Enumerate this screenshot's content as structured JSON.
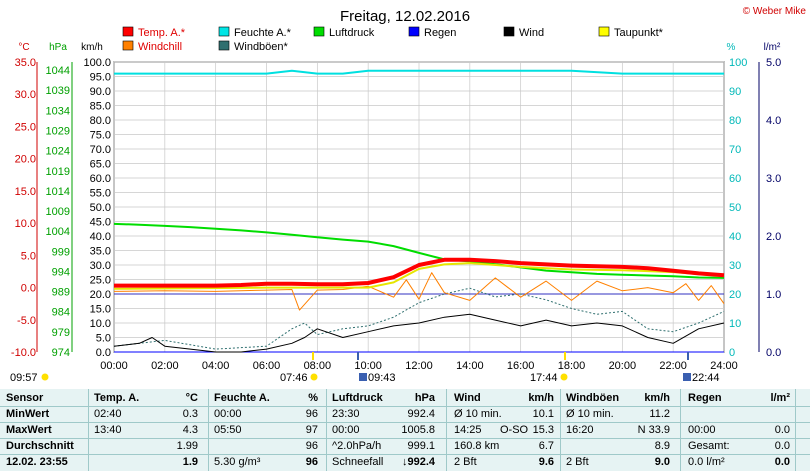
{
  "chart_data": {
    "type": "line",
    "title": "Freitag, 12.02.2016",
    "credit": "© Weber Mike",
    "legend": [
      {
        "name": "Temp. A.*",
        "color": "#ff0000"
      },
      {
        "name": "Feuchte A.*",
        "color": "#00e5e5"
      },
      {
        "name": "Luftdruck",
        "color": "#00dd00"
      },
      {
        "name": "Regen",
        "color": "#0000ff"
      },
      {
        "name": "Wind",
        "color": "#000000"
      },
      {
        "name": "Taupunkt*",
        "color": "#ffff00"
      },
      {
        "name": "Windchill",
        "color": "#ff8000"
      },
      {
        "name": "Windböen*",
        "color": "#2f6f6f"
      }
    ],
    "axes": {
      "temp": {
        "unit": "°C",
        "range": [
          -10,
          35
        ],
        "ticks": [
          "35.0",
          "30.0",
          "25.0",
          "20.0",
          "15.0",
          "10.0",
          "5.0",
          "0.0",
          "-5.0",
          "-10.0"
        ]
      },
      "pressure": {
        "unit": "hPa",
        "range": [
          974,
          1046
        ],
        "ticks": [
          "1044",
          "1039",
          "1034",
          "1029",
          "1024",
          "1019",
          "1014",
          "1009",
          "1004",
          "999",
          "994",
          "989",
          "984",
          "979",
          "974"
        ]
      },
      "wind": {
        "unit": "km/h",
        "range": [
          0,
          100
        ],
        "ticks": [
          "100.0",
          "95.0",
          "90.0",
          "85.0",
          "80.0",
          "75.0",
          "70.0",
          "65.0",
          "60.0",
          "55.0",
          "50.0",
          "45.0",
          "40.0",
          "35.0",
          "30.0",
          "25.0",
          "20.0",
          "15.0",
          "10.0",
          "5.0",
          "0.0"
        ]
      },
      "humidity": {
        "unit": "%",
        "range": [
          0,
          100
        ],
        "ticks": [
          "100",
          "90",
          "80",
          "70",
          "60",
          "50",
          "40",
          "30",
          "20",
          "10",
          "0"
        ]
      },
      "rain": {
        "unit": "l/m²",
        "range": [
          0,
          5
        ],
        "ticks": [
          "5.0",
          "4.0",
          "3.0",
          "2.0",
          "1.0",
          "0.0"
        ]
      },
      "time": {
        "ticks": [
          "00:00",
          "02:00",
          "04:00",
          "06:00",
          "08:00",
          "10:00",
          "12:00",
          "14:00",
          "16:00",
          "18:00",
          "20:00",
          "22:00",
          "24:00"
        ]
      }
    },
    "sun_moon_events": [
      "09:57",
      "07:46",
      "09:43",
      "17:44",
      "22:44"
    ],
    "series": [
      {
        "name": "Temp. A.*",
        "axis": "temp",
        "x": [
          0,
          1,
          2,
          3,
          4,
          5,
          6,
          7,
          8,
          9,
          10,
          11,
          12,
          13,
          14,
          15,
          16,
          17,
          18,
          19,
          20,
          21,
          22,
          23,
          24
        ],
        "values": [
          0.3,
          0.3,
          0.3,
          0.3,
          0.3,
          0.4,
          0.6,
          0.6,
          0.5,
          0.5,
          0.7,
          1.6,
          3.5,
          4.3,
          4.3,
          4.1,
          3.8,
          3.6,
          3.4,
          3.3,
          3.2,
          3.0,
          2.6,
          2.2,
          1.9
        ]
      },
      {
        "name": "Feuchte A.*",
        "axis": "humidity",
        "x": [
          0,
          2,
          4,
          6,
          7,
          8,
          9,
          10,
          12,
          14,
          16,
          18,
          20,
          22,
          24
        ],
        "values": [
          96,
          96,
          96,
          96,
          97,
          96,
          96,
          97,
          97,
          97,
          97,
          97,
          96,
          96,
          96
        ]
      },
      {
        "name": "Luftdruck",
        "axis": "pressure",
        "x": [
          0,
          1,
          2,
          3,
          4,
          5,
          6,
          7,
          8,
          9,
          10,
          11,
          12,
          13,
          14,
          15,
          16,
          17,
          18,
          19,
          20,
          21,
          22,
          23,
          24
        ],
        "values": [
          1005.8,
          1005.6,
          1005.3,
          1005.0,
          1004.6,
          1004.2,
          1003.7,
          1003.1,
          1002.5,
          1001.9,
          1001.4,
          1000.3,
          998.6,
          997.0,
          996.5,
          995.8,
          995.0,
          994.2,
          993.8,
          993.4,
          993.2,
          993.0,
          992.8,
          992.5,
          992.4
        ]
      },
      {
        "name": "Taupunkt*",
        "axis": "temp",
        "x": [
          0,
          6,
          10,
          11,
          12,
          13,
          14,
          16,
          18,
          20,
          22,
          24
        ],
        "values": [
          -0.2,
          0.0,
          0.0,
          0.8,
          2.9,
          3.6,
          3.8,
          3.2,
          2.8,
          2.7,
          2.4,
          1.8
        ]
      },
      {
        "name": "Windchill",
        "axis": "temp",
        "x": [
          0,
          2,
          4,
          6,
          7,
          7.3,
          8,
          9,
          10,
          11,
          11.5,
          12,
          12.5,
          13,
          14,
          15,
          16,
          17,
          18,
          19,
          20,
          21,
          22,
          22.5,
          23,
          23.5,
          24
        ],
        "values": [
          -0.6,
          -0.5,
          -0.6,
          -0.4,
          -0.3,
          -3.5,
          -0.4,
          -0.3,
          0.2,
          -1.5,
          1.2,
          -1.8,
          2.3,
          -0.8,
          -2.0,
          1.5,
          -1.5,
          1.0,
          -2.0,
          1.0,
          -0.5,
          0.0,
          -0.8,
          0.6,
          -2.0,
          0.3,
          -2.5
        ]
      },
      {
        "name": "Wind",
        "axis": "wind",
        "x": [
          0,
          1,
          1.5,
          2,
          3,
          4,
          5,
          6,
          7,
          7.5,
          8,
          9,
          10,
          11,
          12,
          13,
          14,
          15,
          16,
          17,
          18,
          19,
          20,
          21,
          22,
          23,
          24
        ],
        "values": [
          2,
          3,
          5,
          2,
          1,
          0,
          0,
          1,
          3,
          5,
          8,
          5,
          7,
          9,
          10,
          12,
          13,
          11,
          9,
          11,
          9,
          10,
          9,
          5,
          3,
          8,
          10
        ]
      },
      {
        "name": "Windböen*",
        "axis": "wind",
        "x": [
          0,
          2,
          4,
          6,
          7,
          7.5,
          8,
          9,
          10,
          11,
          12,
          13,
          14,
          15,
          16,
          17,
          18,
          19,
          20,
          21,
          22,
          23,
          24
        ],
        "values": [
          2,
          4,
          1,
          2,
          8,
          10,
          6,
          8,
          9,
          12,
          17,
          20,
          22,
          19,
          20,
          18,
          15,
          13,
          14,
          8,
          7,
          10,
          14
        ]
      },
      {
        "name": "Regen",
        "axis": "rain",
        "x": [
          0,
          24
        ],
        "values": [
          0,
          0
        ]
      }
    ],
    "reference_line": {
      "axis": "rain",
      "value": 1.0,
      "color": "#3030c0"
    }
  },
  "table": {
    "headers": [
      "Sensor",
      "Temp. A.",
      "°C",
      "Feuchte A.",
      "%",
      "Luftdruck",
      "hPa",
      "Wind",
      "km/h",
      "Windböen",
      "km/h",
      "Regen",
      "l/m²"
    ],
    "rows": [
      [
        "MinWert",
        "02:40",
        "0.3",
        "00:00",
        "96",
        "23:30",
        "992.4",
        "Ø 10 min.",
        "",
        "10.1",
        "Ø 10 min.",
        "11.2",
        "",
        "",
        ""
      ],
      [
        "MaxWert",
        "13:40",
        "4.3",
        "05:50",
        "97",
        "00:00",
        "1005.8",
        "14:25",
        "O-SO",
        "15.3",
        "16:20",
        "N 33.9",
        "00:00",
        "",
        "0.0"
      ],
      [
        "Durchschnitt",
        "",
        "1.99",
        "",
        "96",
        "^2.0hPa/h",
        "999.1",
        "160.8 km",
        "",
        "6.7",
        "",
        "8.9",
        "Gesamt:",
        "",
        "0.0"
      ],
      [
        "12.02. 23:55",
        "",
        "1.9",
        "5.30 g/m³",
        "96",
        "Schneefall",
        "↓992.4",
        "2 Bft",
        "",
        "9.6",
        "2 Bft",
        "9.0",
        "0.0 l/m²",
        "",
        "0.0"
      ]
    ]
  }
}
